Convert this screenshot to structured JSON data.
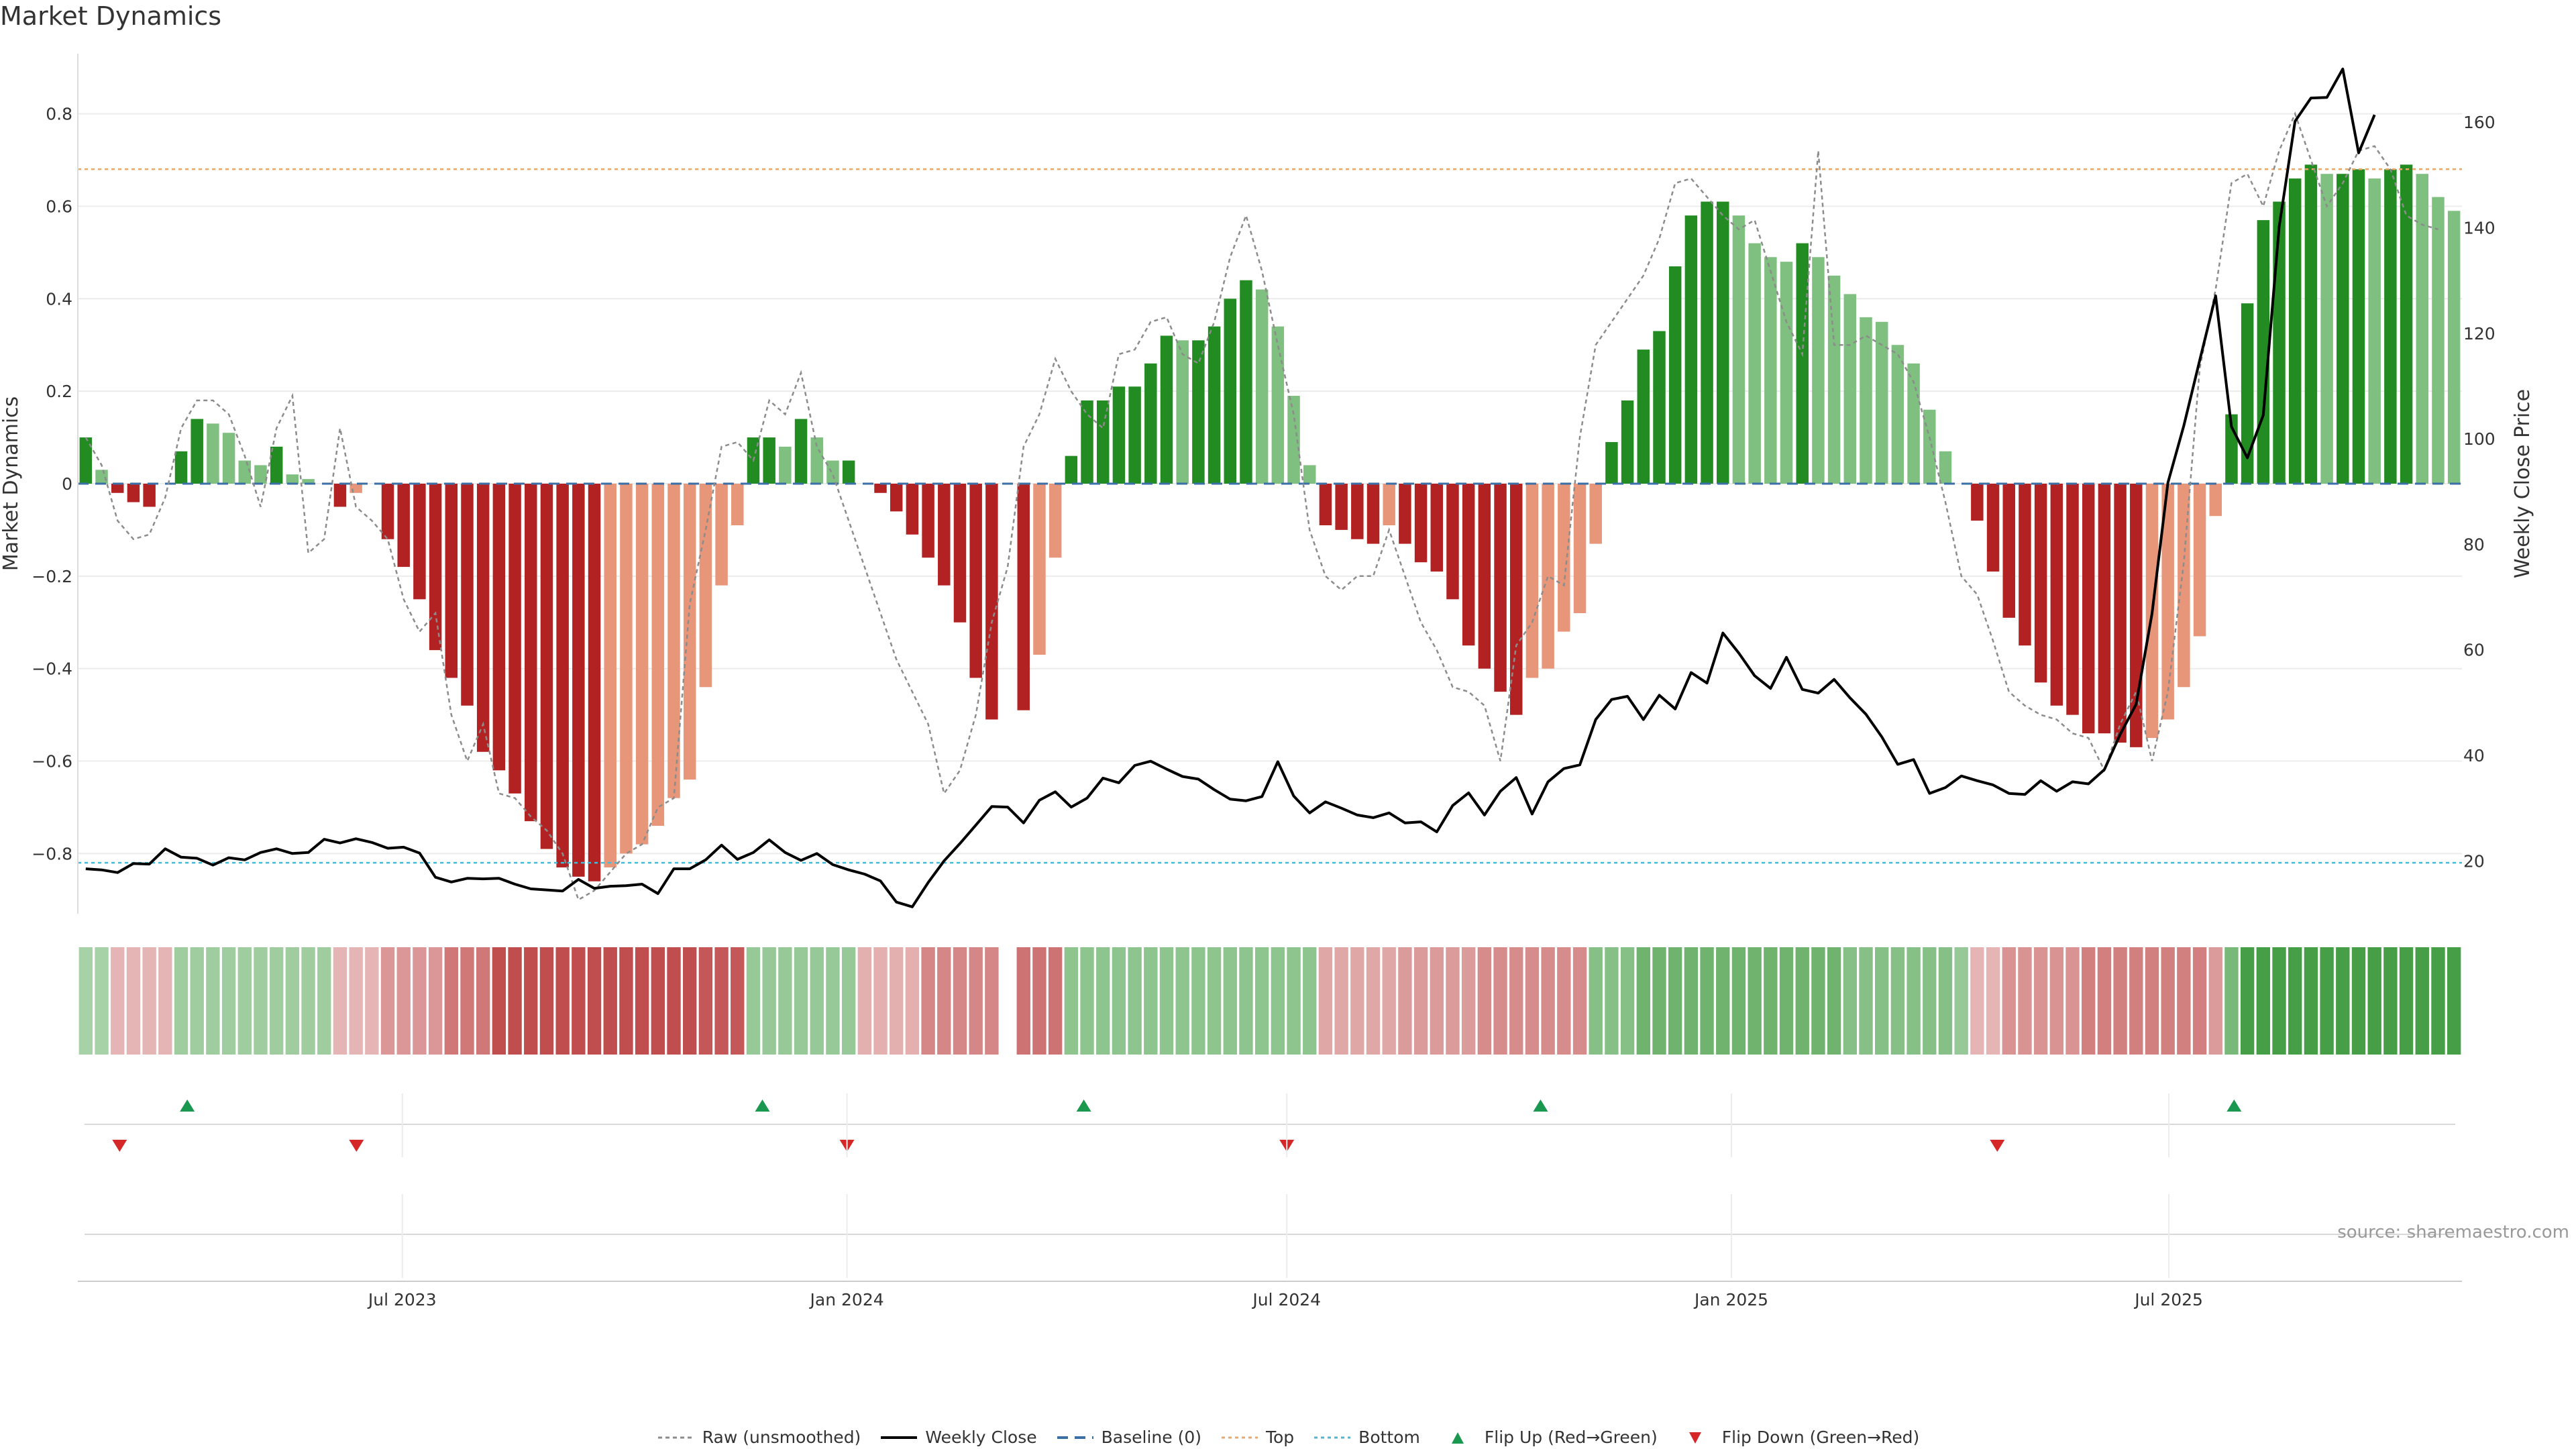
{
  "title": "Market Dynamics",
  "source_note": "source: sharemaestro.com",
  "colors": {
    "green_strong": "#228b22",
    "green_light": "#7fbf7f",
    "red_strong": "#b22222",
    "red_light": "#e8967a",
    "raw_line": "#8c8c8c",
    "close_line": "#000000",
    "baseline": "#3a6fa8",
    "top_line": "#e8a96a",
    "bottom_line": "#4cb8d4",
    "flip_up": "#1a9850",
    "flip_down": "#d62728"
  },
  "legend": [
    {
      "key": "raw",
      "label": "Raw (unsmoothed)"
    },
    {
      "key": "close",
      "label": "Weekly Close"
    },
    {
      "key": "baseline",
      "label": "Baseline (0)"
    },
    {
      "key": "top",
      "label": "Top"
    },
    {
      "key": "bottom",
      "label": "Bottom"
    },
    {
      "key": "flip_up",
      "label": "Flip Up (Red→Green)"
    },
    {
      "key": "flip_down",
      "label": "Flip Down (Green→Red)"
    }
  ],
  "chart_data": {
    "type": "bar",
    "title": "Market Dynamics",
    "ylabel": "Market Dynamics",
    "ylabel_right": "Weekly Close Price",
    "ylim": [
      -0.93,
      0.93
    ],
    "ylim_right": [
      10,
      173
    ],
    "y_ticks": [
      0.8,
      0.6,
      0.4,
      0.2,
      0,
      -0.2,
      -0.4,
      -0.6,
      -0.8
    ],
    "y_tick_labels": [
      "0.8",
      "0.6",
      "0.4",
      "0.2",
      "0",
      "−0.2",
      "−0.4",
      "−0.6",
      "−0.8"
    ],
    "y_right_ticks": [
      20,
      40,
      60,
      80,
      100,
      120,
      140,
      160
    ],
    "x_start": "2023-02-20",
    "x_end": "2025-10-27",
    "x_ticks": [
      {
        "date": "2023-07-01",
        "label": "Jul 2023"
      },
      {
        "date": "2024-01-01",
        "label": "Jan 2024"
      },
      {
        "date": "2024-07-01",
        "label": "Jul 2024"
      },
      {
        "date": "2025-01-01",
        "label": "Jan 2025"
      },
      {
        "date": "2025-07-01",
        "label": "Jul 2025"
      }
    ],
    "grid": true,
    "legend_position": "bottom",
    "top_level": 0.68,
    "bottom_level": -0.82,
    "baseline": 0,
    "market_dynamics": [
      0.1,
      0.03,
      -0.02,
      -0.04,
      -0.05,
      0,
      0.07,
      0.14,
      0.13,
      0.11,
      0.05,
      0.04,
      0.08,
      0.02,
      0.01,
      0,
      -0.05,
      -0.02,
      0,
      -0.12,
      -0.18,
      -0.25,
      -0.36,
      -0.42,
      -0.48,
      -0.58,
      -0.62,
      -0.67,
      -0.73,
      -0.79,
      -0.83,
      -0.85,
      -0.86,
      -0.83,
      -0.8,
      -0.78,
      -0.74,
      -0.68,
      -0.64,
      -0.44,
      -0.22,
      -0.09,
      0.1,
      0.1,
      0.08,
      0.14,
      0.1,
      0.05,
      0.05,
      0,
      -0.02,
      -0.06,
      -0.11,
      -0.16,
      -0.22,
      -0.3,
      -0.42,
      -0.51,
      0,
      -0.49,
      -0.37,
      -0.16,
      0.06,
      0.18,
      0.18,
      0.21,
      0.21,
      0.26,
      0.32,
      0.31,
      0.31,
      0.34,
      0.4,
      0.44,
      0.42,
      0.34,
      0.19,
      0.04,
      -0.09,
      -0.1,
      -0.12,
      -0.13,
      -0.09,
      -0.13,
      -0.17,
      -0.19,
      -0.25,
      -0.35,
      -0.4,
      -0.45,
      -0.5,
      -0.42,
      -0.4,
      -0.32,
      -0.28,
      -0.13,
      0.09,
      0.18,
      0.29,
      0.33,
      0.47,
      0.58,
      0.61,
      0.61,
      0.58,
      0.52,
      0.49,
      0.48,
      0.52,
      0.49,
      0.45,
      0.41,
      0.36,
      0.35,
      0.3,
      0.26,
      0.16,
      0.07,
      0,
      -0.08,
      -0.19,
      -0.29,
      -0.35,
      -0.43,
      -0.48,
      -0.5,
      -0.54,
      -0.54,
      -0.56,
      -0.57,
      -0.55,
      -0.51,
      -0.44,
      -0.33,
      -0.07,
      0.15,
      0.39,
      0.57,
      0.61,
      0.66,
      0.69,
      0.67,
      0.67,
      0.68,
      0.66,
      0.68,
      0.69,
      0.67,
      0.62,
      0.59
    ],
    "raw": [
      0.1,
      0.04,
      -0.08,
      -0.12,
      -0.11,
      -0.03,
      0.12,
      0.18,
      0.18,
      0.15,
      0.06,
      -0.05,
      0.12,
      0.19,
      -0.15,
      -0.12,
      0.12,
      -0.05,
      -0.08,
      -0.12,
      -0.25,
      -0.32,
      -0.28,
      -0.5,
      -0.6,
      -0.52,
      -0.67,
      -0.68,
      -0.72,
      -0.75,
      -0.8,
      -0.9,
      -0.88,
      -0.84,
      -0.8,
      -0.78,
      -0.7,
      -0.68,
      -0.26,
      -0.1,
      0.08,
      0.09,
      0.05,
      0.18,
      0.15,
      0.24,
      0.08,
      0.02,
      -0.08,
      -0.18,
      -0.28,
      -0.38,
      -0.45,
      -0.52,
      -0.67,
      -0.62,
      -0.5,
      -0.3,
      -0.18,
      0.08,
      0.15,
      0.27,
      0.2,
      0.15,
      0.12,
      0.28,
      0.29,
      0.35,
      0.36,
      0.28,
      0.26,
      0.35,
      0.49,
      0.58,
      0.46,
      0.3,
      0.15,
      -0.1,
      -0.2,
      -0.23,
      -0.2,
      -0.2,
      -0.1,
      -0.2,
      -0.3,
      -0.36,
      -0.44,
      -0.45,
      -0.48,
      -0.6,
      -0.35,
      -0.3,
      -0.2,
      -0.22,
      0.1,
      0.3,
      0.35,
      0.4,
      0.45,
      0.53,
      0.65,
      0.66,
      0.62,
      0.58,
      0.55,
      0.57,
      0.46,
      0.35,
      0.28,
      0.72,
      0.3,
      0.3,
      0.32,
      0.3,
      0.28,
      0.22,
      0.1,
      -0.04,
      -0.2,
      -0.24,
      -0.34,
      -0.45,
      -0.48,
      -0.5,
      -0.51,
      -0.54,
      -0.55,
      -0.62,
      -0.52,
      -0.45,
      -0.6,
      -0.45,
      -0.17,
      0.25,
      0.42,
      0.65,
      0.67,
      0.6,
      0.72,
      0.8,
      0.7,
      0.6,
      0.65,
      0.72,
      0.73,
      0.68,
      0.58,
      0.56,
      0.55
    ],
    "weekly_close": [
      18.5,
      18.3,
      17.8,
      19.5,
      19.4,
      22.3,
      20.7,
      20.5,
      19.2,
      20.6,
      20.2,
      21.6,
      22.3,
      21.4,
      21.6,
      24.1,
      23.4,
      24.2,
      23.5,
      22.4,
      22.6,
      21.5,
      16.9,
      16.0,
      16.7,
      16.6,
      16.7,
      15.6,
      14.7,
      14.5,
      14.3,
      16.5,
      14.8,
      15.2,
      15.3,
      15.6,
      13.8,
      18.5,
      18.5,
      20.2,
      23.0,
      20.3,
      21.6,
      24.0,
      21.6,
      20.1,
      21.4,
      19.3,
      18.3,
      17.5,
      16.2,
      12.2,
      11.3,
      15.9,
      20.0,
      23.3,
      26.8,
      30.3,
      30.2,
      27.2,
      31.5,
      33.1,
      30.2,
      31.9,
      35.7,
      34.8,
      38.1,
      38.9,
      37.4,
      36.0,
      35.5,
      33.5,
      31.7,
      31.4,
      32.2,
      38.8,
      32.3,
      29.1,
      31.2,
      30.0,
      28.7,
      28.2,
      29.1,
      27.2,
      27.4,
      25.5,
      30.5,
      32.9,
      28.7,
      33.2,
      35.8,
      28.9,
      35.0,
      37.5,
      38.2,
      46.8,
      50.6,
      51.2,
      46.8,
      51.4,
      48.8,
      55.7,
      53.7,
      63.2,
      59.4,
      55.1,
      52.7,
      58.6,
      52.5,
      51.8,
      54.4,
      50.9,
      47.8,
      43.5,
      38.3,
      39.2,
      32.8,
      33.9,
      36.1,
      35.2,
      34.4,
      32.8,
      32.6,
      35.2,
      33.2,
      35.0,
      34.6,
      37.3,
      44.0,
      49.7,
      66.9,
      91.7,
      102.5,
      114.9,
      127.1,
      102.3,
      96.4,
      104.5,
      140.2,
      160.2,
      164.6,
      164.7,
      170.1,
      154.2,
      161.4
    ],
    "heat_strip": [
      0.25,
      0.25,
      -0.2,
      -0.2,
      -0.2,
      -0.2,
      0.28,
      0.28,
      0.28,
      0.28,
      0.28,
      0.28,
      0.28,
      0.28,
      0.28,
      0.28,
      -0.2,
      -0.2,
      -0.2,
      -0.32,
      -0.32,
      -0.32,
      -0.32,
      -0.45,
      -0.45,
      -0.45,
      -0.62,
      -0.62,
      -0.62,
      -0.62,
      -0.62,
      -0.62,
      -0.62,
      -0.62,
      -0.62,
      -0.62,
      -0.62,
      -0.62,
      -0.62,
      -0.58,
      -0.58,
      -0.58,
      0.32,
      0.32,
      0.32,
      0.32,
      0.32,
      0.32,
      0.32,
      -0.22,
      -0.22,
      -0.22,
      -0.22,
      -0.38,
      -0.38,
      -0.38,
      -0.38,
      -0.38,
      null,
      -0.46,
      -0.46,
      -0.46,
      0.35,
      0.35,
      0.35,
      0.35,
      0.35,
      0.35,
      0.35,
      0.35,
      0.35,
      0.35,
      0.35,
      0.35,
      0.35,
      0.35,
      0.35,
      0.35,
      -0.25,
      -0.25,
      -0.25,
      -0.25,
      -0.25,
      -0.3,
      -0.3,
      -0.3,
      -0.3,
      -0.3,
      -0.36,
      -0.36,
      -0.36,
      -0.36,
      -0.36,
      -0.36,
      -0.36,
      0.38,
      0.38,
      0.38,
      0.48,
      0.48,
      0.48,
      0.48,
      0.48,
      0.48,
      0.48,
      0.48,
      0.48,
      0.48,
      0.48,
      0.48,
      0.48,
      0.38,
      0.38,
      0.38,
      0.38,
      0.38,
      0.38,
      0.38,
      0.32,
      -0.2,
      -0.2,
      -0.34,
      -0.34,
      -0.34,
      -0.34,
      -0.34,
      -0.42,
      -0.42,
      -0.42,
      -0.42,
      -0.42,
      -0.42,
      -0.42,
      -0.42,
      -0.3,
      0.45,
      0.65,
      0.65,
      0.65,
      0.65,
      0.65,
      0.65,
      0.65,
      0.65,
      0.65,
      0.65,
      0.65,
      0.65,
      0.65,
      0.65
    ],
    "flip_up_dates": [
      "2023-04-03",
      "2023-11-27",
      "2024-04-08",
      "2024-10-14",
      "2025-07-28"
    ],
    "flip_down_dates": [
      "2023-03-06",
      "2023-06-12",
      "2024-01-01",
      "2024-07-01",
      "2025-04-21"
    ]
  }
}
